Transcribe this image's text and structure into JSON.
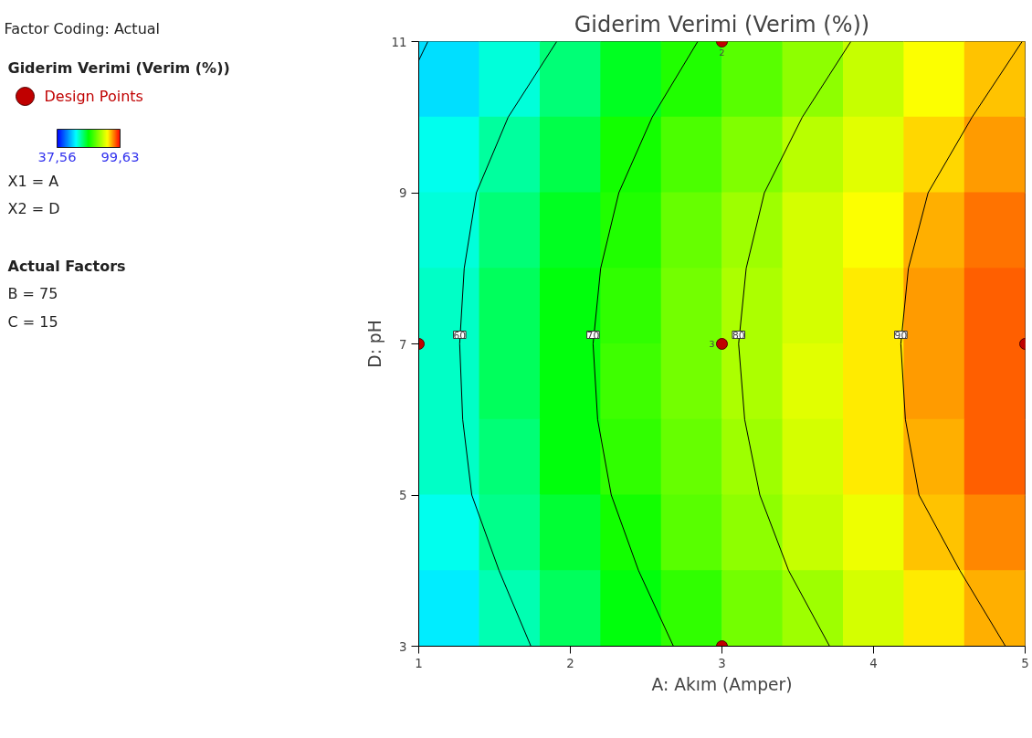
{
  "chart_data": {
    "type": "heatmap",
    "title": "Giderim Verimi (Verim (%))",
    "xlabel": "A: Akım (Amper)",
    "ylabel": "D: pH",
    "legend_title": "Giderim Verimi (Verim (%))",
    "legend": "left",
    "xlim": [
      1,
      5
    ],
    "ylim": [
      3,
      11
    ],
    "xticks": [
      1,
      2,
      3,
      4,
      5
    ],
    "yticks": [
      3,
      5,
      7,
      9,
      11
    ],
    "grid": false,
    "clim": [
      37.56,
      99.63
    ],
    "cticks": [
      {
        "value": 37.56,
        "label": "37,56"
      },
      {
        "value": 99.63,
        "label": "99,63"
      }
    ],
    "cells": [
      [
        54,
        58,
        63,
        67,
        71,
        75,
        79,
        83,
        87,
        90
      ],
      [
        57,
        61,
        65,
        70,
        74,
        78,
        82,
        85,
        89,
        92
      ],
      [
        58,
        63,
        67,
        71,
        76,
        80,
        84,
        87,
        91,
        94
      ],
      [
        59,
        64,
        68,
        72,
        77,
        81,
        84,
        88,
        92,
        95
      ],
      [
        59,
        64,
        68,
        73,
        77,
        81,
        85,
        88,
        92,
        95
      ],
      [
        59,
        63,
        68,
        72,
        76,
        80,
        84,
        88,
        91,
        95
      ],
      [
        57,
        62,
        66,
        70,
        75,
        79,
        83,
        86,
        90,
        93
      ],
      [
        55,
        60,
        64,
        68,
        72,
        77,
        80,
        84,
        88,
        91
      ]
    ],
    "series": [
      {
        "type": "line",
        "color": "#000000",
        "x": [
          1.0,
          1.06
        ],
        "values": [
          10.75,
          11
        ]
      },
      {
        "type": "line",
        "name": "60",
        "color": "#000000",
        "x": [
          1.91,
          1.59,
          1.38,
          1.3,
          1.27,
          1.29,
          1.35,
          1.53,
          1.74
        ],
        "values": [
          11,
          10,
          9,
          8,
          7,
          6,
          5,
          4,
          3
        ]
      },
      {
        "type": "line",
        "name": "70",
        "color": "#000000",
        "x": [
          2.84,
          2.54,
          2.32,
          2.2,
          2.15,
          2.18,
          2.27,
          2.45,
          2.68
        ],
        "values": [
          11,
          10,
          9,
          8,
          7,
          6,
          5,
          4,
          3
        ]
      },
      {
        "type": "line",
        "name": "80",
        "color": "#000000",
        "x": [
          3.85,
          3.53,
          3.28,
          3.16,
          3.11,
          3.15,
          3.25,
          3.44,
          3.71
        ],
        "values": [
          11,
          10,
          9,
          8,
          7,
          6,
          5,
          4,
          3
        ]
      },
      {
        "type": "line",
        "name": "90",
        "color": "#000000",
        "x": [
          4.98,
          4.65,
          4.36,
          4.23,
          4.18,
          4.21,
          4.3,
          4.57,
          4.87
        ],
        "values": [
          11,
          10,
          9,
          8,
          7,
          6,
          5,
          4,
          3
        ]
      },
      {
        "type": "scatter",
        "name": "Design Points",
        "color": "#c00000",
        "marker": "circle",
        "x": [
          1,
          3,
          3,
          3,
          5
        ],
        "values": [
          7,
          11,
          7,
          3,
          7
        ]
      }
    ],
    "annotations": [
      "Factor Coding: Actual",
      "X1 = A",
      "X2 = D",
      "Actual Factors",
      "B = 75",
      "C = 15",
      {
        "text": "2",
        "x": 3,
        "y": 11
      },
      {
        "text": "3",
        "x": 3,
        "y": 7
      }
    ]
  }
}
